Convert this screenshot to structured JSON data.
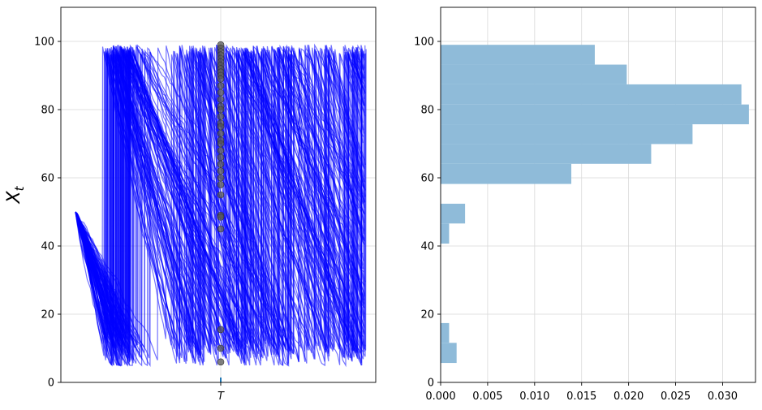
{
  "chart_data": [
    {
      "type": "line",
      "ylabel": "X_t",
      "ylim": [
        0,
        110
      ],
      "yticks": [
        0,
        20,
        40,
        60,
        80,
        100
      ],
      "xticks": [
        "T"
      ],
      "grid": true,
      "line_color": "#0000ff",
      "marker_color": "#555555",
      "marker_tick_color": "#1f77b4",
      "start_value": 50,
      "value_range": [
        5,
        99
      ],
      "t_marker_points": [
        99,
        98,
        97,
        96,
        95,
        94,
        93,
        92,
        91,
        90,
        89,
        87,
        85,
        83,
        81,
        80,
        78,
        76,
        75,
        73,
        71,
        70,
        68,
        66,
        64,
        62,
        60,
        58,
        55,
        49,
        48.5,
        45,
        15.5,
        10,
        6
      ]
    },
    {
      "type": "bar",
      "orientation": "horizontal",
      "xlim": [
        0,
        0.0335
      ],
      "ylim": [
        0,
        110
      ],
      "xticks": [
        "0.000",
        "0.005",
        "0.010",
        "0.015",
        "0.020",
        "0.025",
        "0.030"
      ],
      "xtick_values": [
        0,
        0.005,
        0.01,
        0.015,
        0.02,
        0.025,
        0.03
      ],
      "yticks": [
        0,
        20,
        40,
        60,
        80,
        100
      ],
      "grid": true,
      "bar_color": "#8fbbd9",
      "bins": [
        {
          "y0": 5.7,
          "y1": 11.6,
          "value": 0.0017
        },
        {
          "y0": 11.6,
          "y1": 17.4,
          "value": 0.0009
        },
        {
          "y0": 40.7,
          "y1": 46.6,
          "value": 0.0009
        },
        {
          "y0": 46.6,
          "y1": 52.4,
          "value": 0.0026
        },
        {
          "y0": 58.2,
          "y1": 64.1,
          "value": 0.0139
        },
        {
          "y0": 64.1,
          "y1": 69.9,
          "value": 0.0224
        },
        {
          "y0": 69.9,
          "y1": 75.7,
          "value": 0.0268
        },
        {
          "y0": 75.7,
          "y1": 81.5,
          "value": 0.0328
        },
        {
          "y0": 81.5,
          "y1": 87.4,
          "value": 0.032
        },
        {
          "y0": 87.4,
          "y1": 93.2,
          "value": 0.0198
        },
        {
          "y0": 93.2,
          "y1": 99.0,
          "value": 0.0164
        }
      ]
    }
  ]
}
